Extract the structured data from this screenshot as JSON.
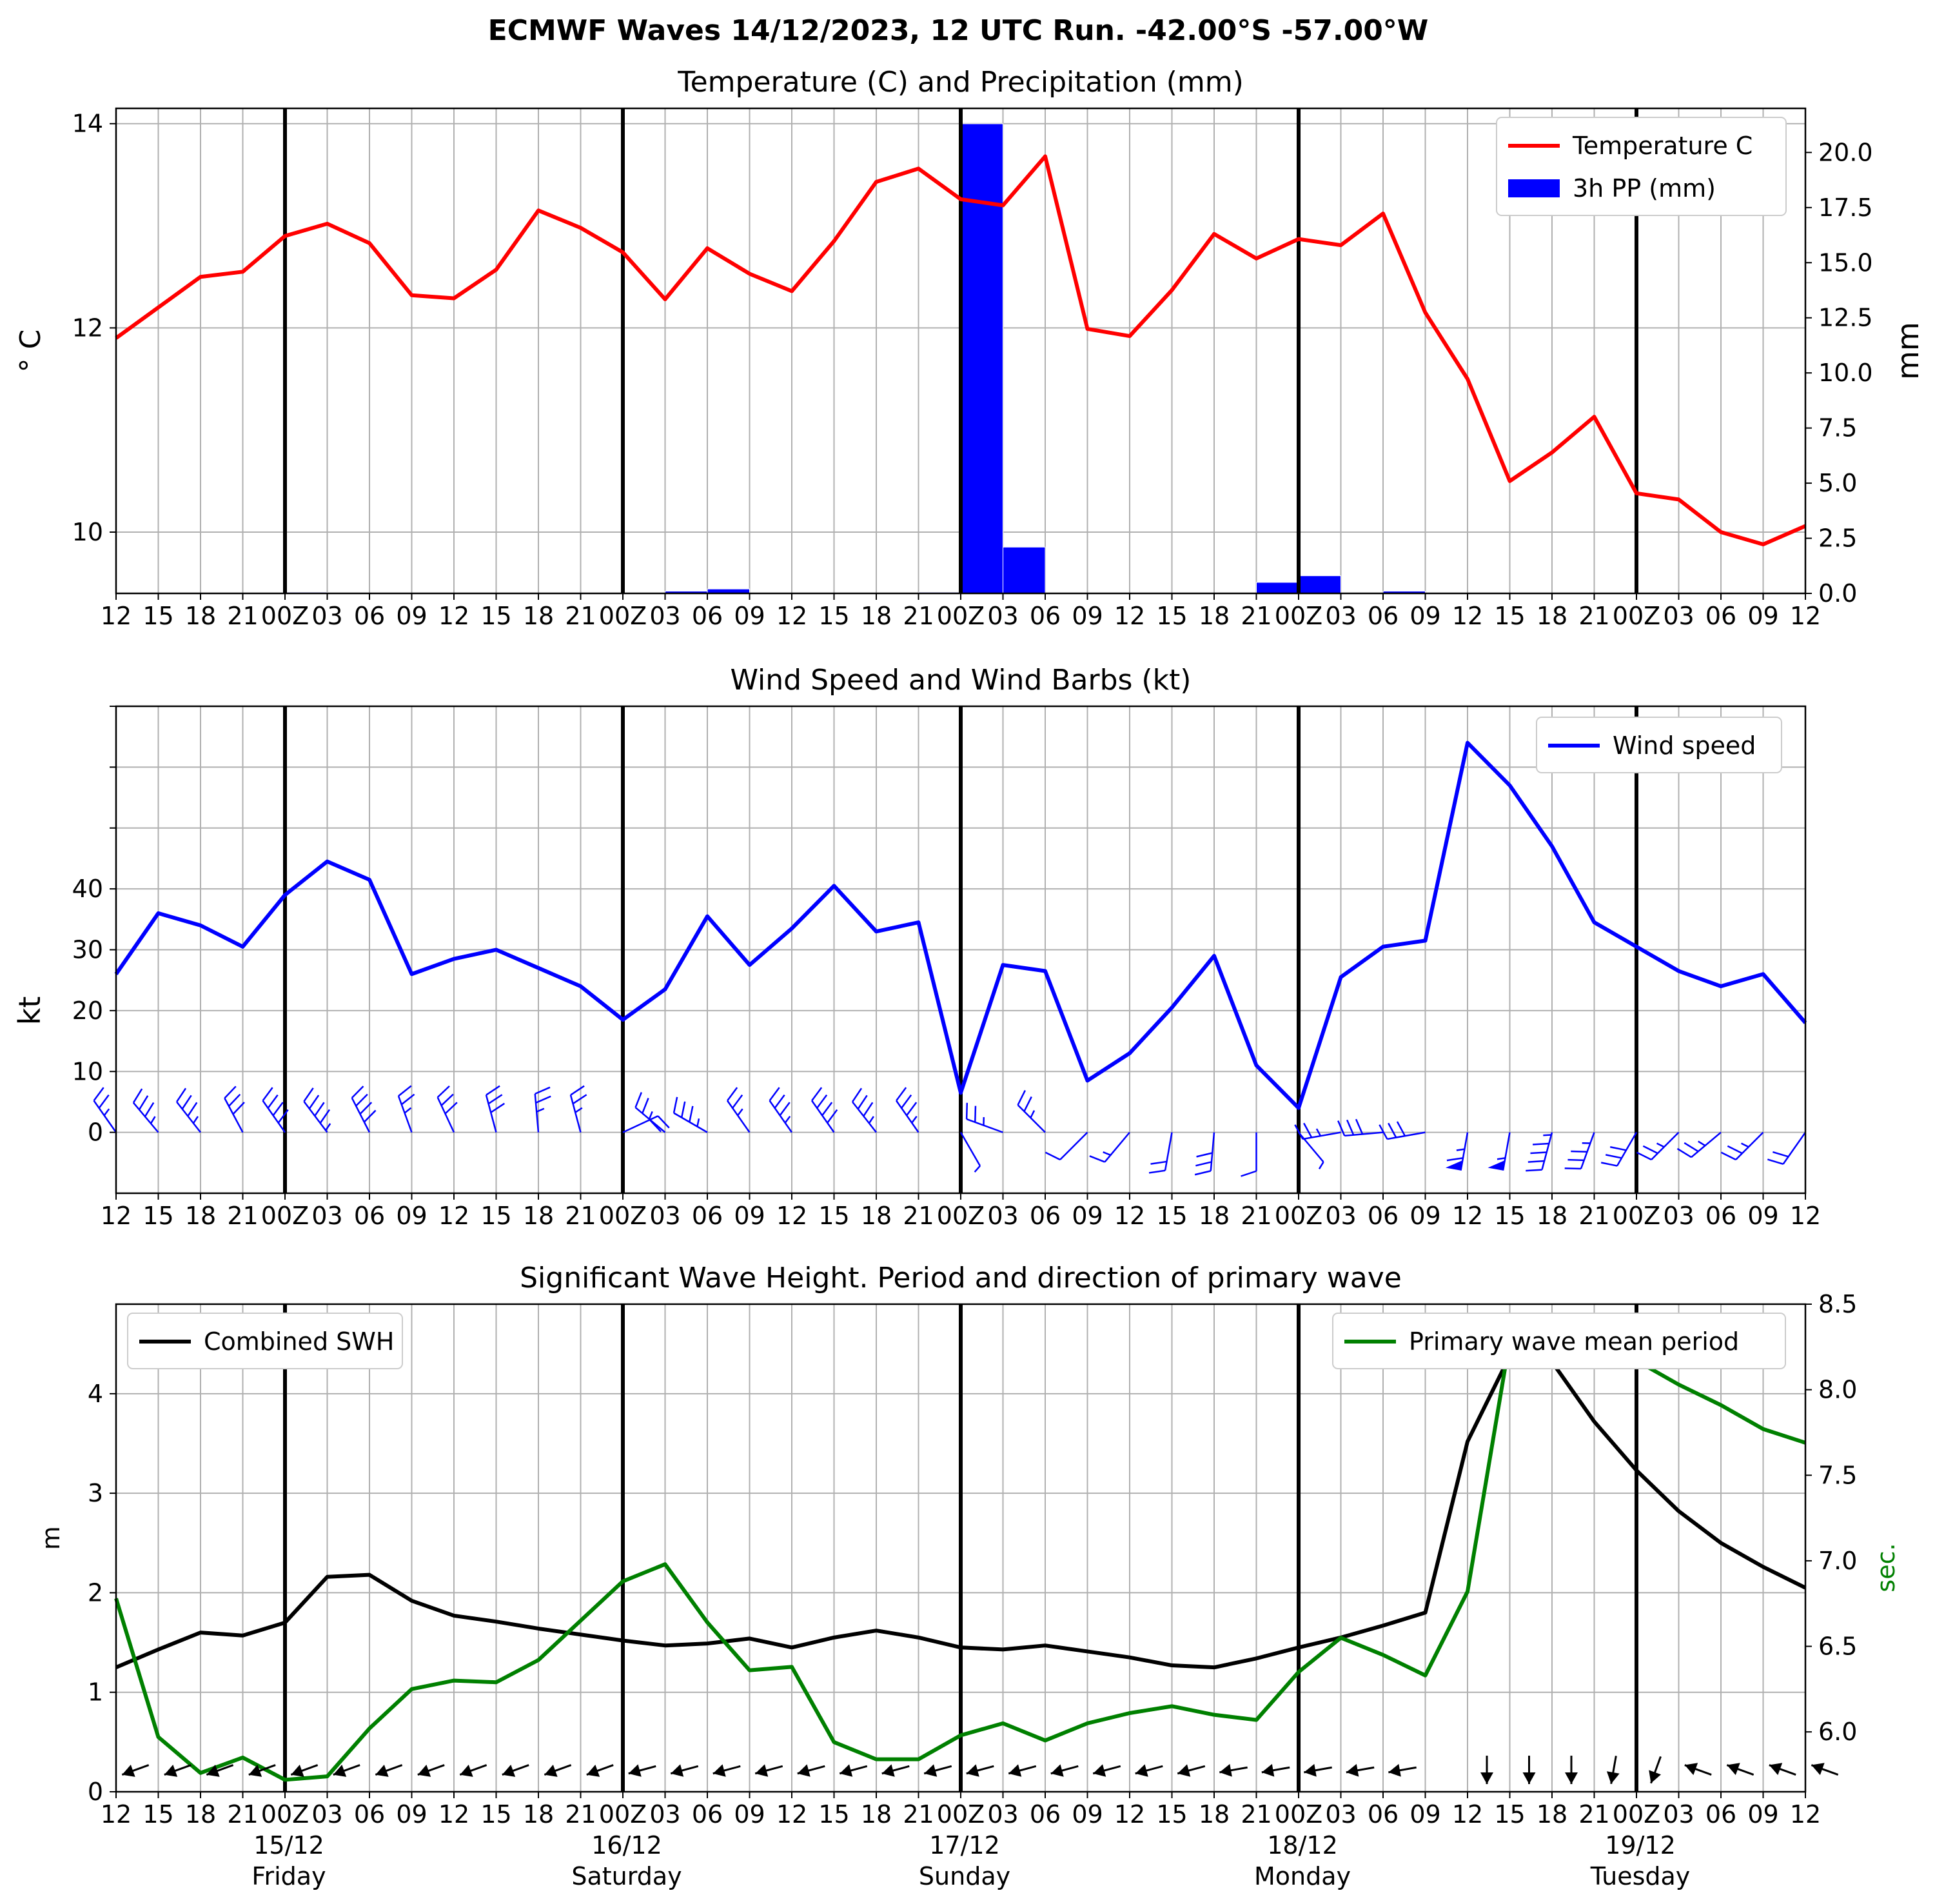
{
  "suptitle": "ECMWF Waves 14/12/2023, 12 UTC Run. -42.00°S -57.00°W",
  "time_ticks": [
    "12",
    "15",
    "18",
    "21",
    "00Z",
    "03",
    "06",
    "09",
    "12",
    "15",
    "18",
    "21",
    "00Z",
    "03",
    "06",
    "09",
    "12",
    "15",
    "18",
    "21",
    "00Z",
    "03",
    "06",
    "09",
    "12",
    "15",
    "18",
    "21",
    "00Z",
    "03",
    "06",
    "09",
    "12",
    "15",
    "18",
    "21",
    "00Z",
    "03",
    "06",
    "09",
    "12"
  ],
  "day_labels": [
    {
      "date": "15/12",
      "weekday": "Friday"
    },
    {
      "date": "16/12",
      "weekday": "Saturday"
    },
    {
      "date": "17/12",
      "weekday": "Sunday"
    },
    {
      "date": "18/12",
      "weekday": "Monday"
    },
    {
      "date": "19/12",
      "weekday": "Tuesday"
    }
  ],
  "colors": {
    "temperature": "#ff0000",
    "precip": "#0000ff",
    "wind": "#0000ff",
    "swh": "#000000",
    "period": "#008000",
    "grid": "#b0b0b0",
    "day_line": "#000000"
  },
  "chart_data": [
    {
      "type": "line",
      "title": "Temperature (C) and Precipitation (mm)",
      "ylabel": "$^\\circ$C",
      "ylabel_display": "° C",
      "y2label": "mm",
      "ylim": [
        9.4,
        14.15
      ],
      "y2lim": [
        0,
        22
      ],
      "yticks": [
        10,
        12,
        14
      ],
      "y2ticks": [
        "0.0",
        "2.5",
        "5.0",
        "7.5",
        "10.0",
        "12.5",
        "15.0",
        "17.5",
        "20.0"
      ],
      "legend": [
        "Temperature C",
        "3h PP (mm)"
      ],
      "legend_position": "upper right",
      "grid": true,
      "series": [
        {
          "name": "Temperature C",
          "type": "line",
          "axis": "left",
          "values": [
            11.9,
            12.2,
            12.5,
            12.55,
            12.9,
            13.02,
            12.83,
            12.32,
            12.29,
            12.57,
            13.15,
            12.98,
            12.74,
            12.28,
            12.78,
            12.53,
            12.36,
            12.85,
            13.43,
            13.56,
            13.26,
            13.2,
            13.68,
            11.99,
            11.92,
            12.37,
            12.92,
            12.68,
            12.87,
            12.81,
            13.12,
            12.15,
            11.5,
            10.5,
            10.78,
            11.13,
            10.38,
            10.32,
            10.0,
            9.88,
            10.06
          ]
        },
        {
          "name": "3h PP (mm)",
          "type": "bar",
          "axis": "right",
          "values": [
            0,
            0,
            0,
            0,
            0.05,
            0,
            0,
            0,
            0,
            0,
            0,
            0,
            0,
            0.1,
            0.2,
            0,
            0,
            0,
            0,
            0.05,
            21.3,
            2.1,
            0,
            0,
            0,
            0,
            0,
            0.5,
            0.8,
            0,
            0.1,
            0,
            0,
            0,
            0,
            0,
            0,
            0,
            0,
            0
          ]
        }
      ]
    },
    {
      "type": "line",
      "title": "Wind Speed and Wind Barbs (kt)",
      "ylabel": "kt",
      "ylim": [
        -10,
        70
      ],
      "yticks": [
        0,
        10,
        20,
        30,
        40
      ],
      "legend": [
        "Wind speed"
      ],
      "legend_position": "upper right",
      "grid": true,
      "series": [
        {
          "name": "Wind speed",
          "values": [
            26,
            36,
            34,
            30.5,
            39,
            44.5,
            41.5,
            26,
            28.5,
            30,
            27,
            24,
            18.5,
            23.5,
            35.5,
            27.5,
            33.5,
            40.5,
            33,
            34.5,
            6.5,
            27.5,
            26.5,
            8.5,
            13,
            20.5,
            29,
            11,
            4,
            25.5,
            30.5,
            31.5,
            64,
            57,
            47,
            34.5,
            30.5,
            26.5,
            24,
            26,
            18
          ]
        }
      ],
      "barbs": [
        {
          "dir_deg": 325,
          "speed_kt": 26
        },
        {
          "dir_deg": 320,
          "speed_kt": 36
        },
        {
          "dir_deg": 322,
          "speed_kt": 34
        },
        {
          "dir_deg": 332,
          "speed_kt": 30
        },
        {
          "dir_deg": 325,
          "speed_kt": 39
        },
        {
          "dir_deg": 323,
          "speed_kt": 44
        },
        {
          "dir_deg": 333,
          "speed_kt": 41
        },
        {
          "dir_deg": 340,
          "speed_kt": 26
        },
        {
          "dir_deg": 335,
          "speed_kt": 28
        },
        {
          "dir_deg": 345,
          "speed_kt": 30
        },
        {
          "dir_deg": 355,
          "speed_kt": 27
        },
        {
          "dir_deg": 345,
          "speed_kt": 24
        },
        {
          "dir_deg": 65,
          "speed_kt": 18
        },
        {
          "dir_deg": 310,
          "speed_kt": 23
        },
        {
          "dir_deg": 300,
          "speed_kt": 35
        },
        {
          "dir_deg": 325,
          "speed_kt": 27
        },
        {
          "dir_deg": 325,
          "speed_kt": 33
        },
        {
          "dir_deg": 325,
          "speed_kt": 40
        },
        {
          "dir_deg": 322,
          "speed_kt": 33
        },
        {
          "dir_deg": 325,
          "speed_kt": 34
        },
        {
          "dir_deg": 150,
          "speed_kt": 6
        },
        {
          "dir_deg": 290,
          "speed_kt": 27
        },
        {
          "dir_deg": 315,
          "speed_kt": 26
        },
        {
          "dir_deg": 225,
          "speed_kt": 8
        },
        {
          "dir_deg": 220,
          "speed_kt": 13
        },
        {
          "dir_deg": 190,
          "speed_kt": 20
        },
        {
          "dir_deg": 185,
          "speed_kt": 29
        },
        {
          "dir_deg": 180,
          "speed_kt": 11
        },
        {
          "dir_deg": 140,
          "speed_kt": 4
        },
        {
          "dir_deg": 260,
          "speed_kt": 25
        },
        {
          "dir_deg": 265,
          "speed_kt": 30
        },
        {
          "dir_deg": 260,
          "speed_kt": 31
        },
        {
          "dir_deg": 190,
          "speed_kt": 64
        },
        {
          "dir_deg": 190,
          "speed_kt": 57
        },
        {
          "dir_deg": 195,
          "speed_kt": 47
        },
        {
          "dir_deg": 200,
          "speed_kt": 34
        },
        {
          "dir_deg": 210,
          "speed_kt": 30
        },
        {
          "dir_deg": 225,
          "speed_kt": 26
        },
        {
          "dir_deg": 230,
          "speed_kt": 24
        },
        {
          "dir_deg": 225,
          "speed_kt": 26
        },
        {
          "dir_deg": 215,
          "speed_kt": 18
        }
      ]
    },
    {
      "type": "line",
      "title": "Significant Wave Height. Period and direction of primary wave",
      "ylabel": "m",
      "y2label": "sec.",
      "ylim": [
        0,
        4.9
      ],
      "y2lim": [
        5.65,
        8.5
      ],
      "yticks": [
        0,
        1,
        2,
        3,
        4
      ],
      "y2ticks": [
        "6.0",
        "6.5",
        "7.0",
        "7.5",
        "8.0",
        "8.5"
      ],
      "legend_left": [
        "Combined SWH"
      ],
      "legend_right": [
        "Primary wave mean period"
      ],
      "grid": true,
      "series": [
        {
          "name": "Combined SWH",
          "axis": "left",
          "values": [
            1.25,
            1.43,
            1.6,
            1.57,
            1.7,
            2.16,
            2.18,
            1.92,
            1.77,
            1.71,
            1.64,
            1.58,
            1.52,
            1.47,
            1.49,
            1.54,
            1.45,
            1.55,
            1.62,
            1.55,
            1.45,
            1.43,
            1.47,
            1.41,
            1.35,
            1.27,
            1.25,
            1.34,
            1.45,
            1.55,
            1.67,
            1.8,
            3.52,
            4.38,
            4.32,
            3.72,
            3.23,
            2.82,
            2.5,
            2.26,
            2.05
          ]
        },
        {
          "name": "Primary wave mean period",
          "axis": "right",
          "values": [
            6.78,
            5.97,
            5.76,
            5.85,
            5.72,
            5.74,
            6.02,
            6.25,
            6.3,
            6.29,
            6.42,
            6.65,
            6.88,
            6.98,
            6.64,
            6.36,
            6.38,
            5.94,
            5.84,
            5.84,
            5.98,
            6.05,
            5.95,
            6.05,
            6.11,
            6.15,
            6.1,
            6.07,
            6.35,
            6.55,
            6.45,
            6.33,
            6.82,
            8.29,
            8.36,
            8.3,
            8.17,
            8.03,
            7.91,
            7.77,
            7.69
          ]
        }
      ],
      "wave_dir_deg": [
        250,
        250,
        250,
        250,
        250,
        250,
        250,
        250,
        250,
        250,
        250,
        250,
        255,
        255,
        255,
        255,
        255,
        255,
        255,
        255,
        255,
        255,
        255,
        255,
        255,
        255,
        260,
        260,
        260,
        260,
        260,
        null,
        180,
        180,
        180,
        190,
        200,
        290,
        290,
        290,
        290
      ]
    }
  ]
}
